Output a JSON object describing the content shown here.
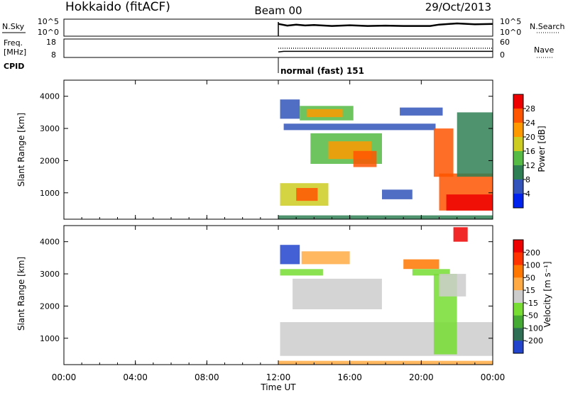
{
  "header": {
    "site": "Hokkaido (fitACF)",
    "beam": "Beam 00",
    "date": "29/Oct/2013"
  },
  "nsky_panel": {
    "label": "N.Sky",
    "right_label": "N.Search",
    "left_ticks": [
      "10^5",
      "10^0"
    ],
    "right_ticks": [
      "10^5",
      "10^0"
    ]
  },
  "freq_panel": {
    "label_line1": "Freq.",
    "label_line2": "[MHz]",
    "right_label": "Nave",
    "left_ticks": [
      "18",
      "8"
    ],
    "right_ticks": [
      "60",
      "0"
    ]
  },
  "cpid": {
    "label": "CPID",
    "mode_text": "normal (fast) 151"
  },
  "chart_data": [
    {
      "type": "heatmap",
      "name": "power",
      "ylabel": "Slant Range [km]",
      "y_ticks": [
        "4000",
        "3000",
        "2000",
        "1000"
      ],
      "colorbar_label": "Power [dB]",
      "colorbar_ticks": [
        "28",
        "24",
        "20",
        "16",
        "12",
        "8",
        "4"
      ],
      "colors": [
        "#0022ee",
        "#3355bb",
        "#2f7f55",
        "#55bb44",
        "#cccc22",
        "#ff9900",
        "#ff5500",
        "#ee0000"
      ],
      "ylim": [
        180,
        4500
      ],
      "xlim": [
        0,
        24
      ],
      "data_start_hour": 12,
      "regions": [
        {
          "t0": 12.0,
          "t1": 24.0,
          "r0": 190,
          "r1": 300,
          "level": 2
        },
        {
          "t0": 12.1,
          "t1": 14.8,
          "r0": 600,
          "r1": 1300,
          "level": 4
        },
        {
          "t0": 13.0,
          "t1": 14.2,
          "r0": 750,
          "r1": 1150,
          "level": 6
        },
        {
          "t0": 17.8,
          "t1": 19.5,
          "r0": 800,
          "r1": 1100,
          "level": 1
        },
        {
          "t0": 12.1,
          "t1": 13.2,
          "r0": 3300,
          "r1": 3900,
          "level": 1
        },
        {
          "t0": 12.3,
          "t1": 20.8,
          "r0": 2950,
          "r1": 3150,
          "level": 1
        },
        {
          "t0": 13.2,
          "t1": 16.2,
          "r0": 3250,
          "r1": 3700,
          "level": 3
        },
        {
          "t0": 13.6,
          "t1": 15.6,
          "r0": 3350,
          "r1": 3600,
          "level": 5
        },
        {
          "t0": 18.8,
          "t1": 21.2,
          "r0": 3400,
          "r1": 3650,
          "level": 1
        },
        {
          "t0": 13.8,
          "t1": 17.8,
          "r0": 1900,
          "r1": 2850,
          "level": 3
        },
        {
          "t0": 14.8,
          "t1": 17.2,
          "r0": 2050,
          "r1": 2600,
          "level": 5
        },
        {
          "t0": 16.2,
          "t1": 17.5,
          "r0": 1800,
          "r1": 2300,
          "level": 6
        },
        {
          "t0": 20.7,
          "t1": 21.8,
          "r0": 1500,
          "r1": 3000,
          "level": 6
        },
        {
          "t0": 21.0,
          "t1": 24.0,
          "r0": 450,
          "r1": 1600,
          "level": 6
        },
        {
          "t0": 21.4,
          "t1": 24.0,
          "r0": 450,
          "r1": 950,
          "level": 7
        },
        {
          "t0": 22.0,
          "t1": 24.0,
          "r0": 1500,
          "r1": 3500,
          "level": 2
        }
      ]
    },
    {
      "type": "heatmap",
      "name": "velocity",
      "ylabel": "Slant Range [km]",
      "y_ticks": [
        "4000",
        "3000",
        "2000",
        "1000"
      ],
      "colorbar_label": "Velocity [m s⁻¹]",
      "colorbar_ticks": [
        "200",
        "100",
        "50",
        "15",
        "-15",
        "-50",
        "-100",
        "-200"
      ],
      "colors": [
        "#2244cc",
        "#2f6f55",
        "#44aa33",
        "#77dd33",
        "#cccccc",
        "#ffaa44",
        "#ff7700",
        "#ff3300",
        "#ee0000"
      ],
      "ylim": [
        180,
        4500
      ],
      "xlim": [
        0,
        24
      ],
      "data_start_hour": 12,
      "regions": [
        {
          "t0": 12.0,
          "t1": 24.0,
          "r0": 190,
          "r1": 300,
          "level": 5
        },
        {
          "t0": 12.1,
          "t1": 24.0,
          "r0": 450,
          "r1": 1500,
          "level": 4
        },
        {
          "t0": 12.1,
          "t1": 14.5,
          "r0": 2950,
          "r1": 3150,
          "level": 3
        },
        {
          "t0": 12.1,
          "t1": 13.2,
          "r0": 3300,
          "r1": 3900,
          "level": 0
        },
        {
          "t0": 13.3,
          "t1": 16.0,
          "r0": 3300,
          "r1": 3700,
          "level": 5
        },
        {
          "t0": 12.8,
          "t1": 17.8,
          "r0": 1900,
          "r1": 2850,
          "level": 4
        },
        {
          "t0": 19.0,
          "t1": 21.0,
          "r0": 3150,
          "r1": 3450,
          "level": 6
        },
        {
          "t0": 19.5,
          "t1": 21.6,
          "r0": 2950,
          "r1": 3150,
          "level": 3
        },
        {
          "t0": 20.7,
          "t1": 22.0,
          "r0": 500,
          "r1": 3000,
          "level": 3
        },
        {
          "t0": 21.0,
          "t1": 22.5,
          "r0": 2300,
          "r1": 3000,
          "level": 4
        },
        {
          "t0": 21.8,
          "t1": 22.6,
          "r0": 4000,
          "r1": 4450,
          "level": 8
        }
      ]
    },
    {
      "type": "line",
      "name": "nsky",
      "x": [
        12.0,
        12.5,
        13,
        13.5,
        14,
        15,
        16,
        17,
        18,
        19,
        20,
        20.5,
        21,
        22,
        23,
        24
      ],
      "y": [
        0.72,
        0.62,
        0.68,
        0.63,
        0.66,
        0.6,
        0.64,
        0.6,
        0.62,
        0.6,
        0.6,
        0.6,
        0.68,
        0.75,
        0.7,
        0.72
      ],
      "ylim": [
        0,
        1
      ]
    },
    {
      "type": "line",
      "name": "freq",
      "x": [
        12.0,
        12.3,
        24
      ],
      "y": [
        11.0,
        11.3,
        11.3
      ],
      "ylim": [
        8,
        18
      ]
    },
    {
      "type": "line",
      "name": "nave",
      "x": [
        12.0,
        24
      ],
      "y": [
        30,
        30
      ],
      "ylim": [
        0,
        60
      ]
    }
  ],
  "x_axis": {
    "tick_labels": [
      "00:00",
      "04:00",
      "08:00",
      "12:00",
      "16:00",
      "20:00",
      "00:00"
    ],
    "label": "Time UT"
  }
}
